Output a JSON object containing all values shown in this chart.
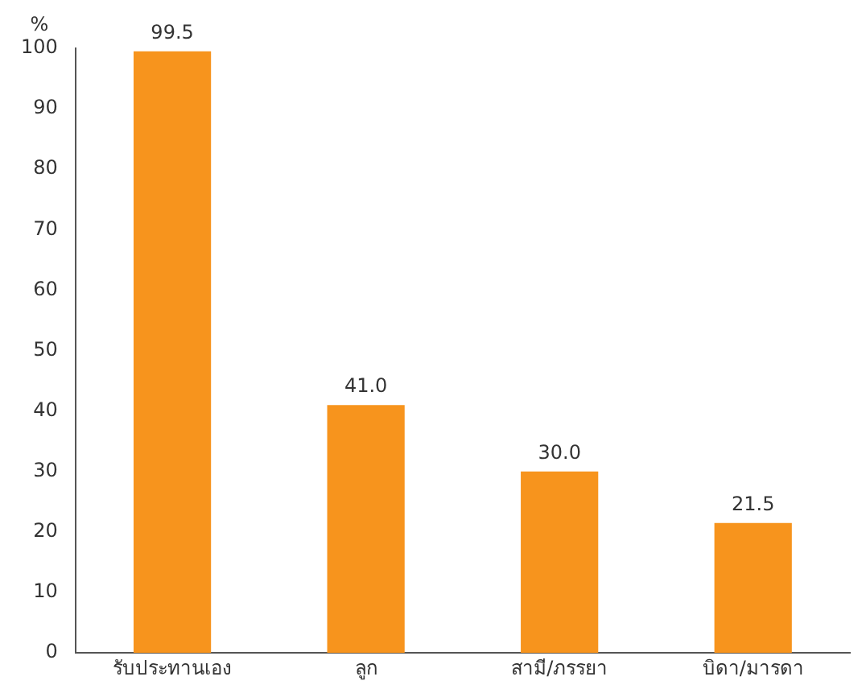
{
  "chart_data": {
    "type": "bar",
    "ylabel": "%",
    "categories": [
      "รับประทานเอง",
      "ลูก",
      "สามี/ภรรยา",
      "บิดา/มารดา"
    ],
    "values": [
      99.5,
      41.0,
      30.0,
      21.5
    ],
    "value_labels": [
      "99.5",
      "41.0",
      "30.0",
      "21.5"
    ],
    "color": "#f7941d",
    "ylim": [
      0,
      100
    ],
    "yticks": [
      0,
      10,
      20,
      30,
      40,
      50,
      60,
      70,
      80,
      90,
      100
    ],
    "grid": false,
    "legend": false
  }
}
